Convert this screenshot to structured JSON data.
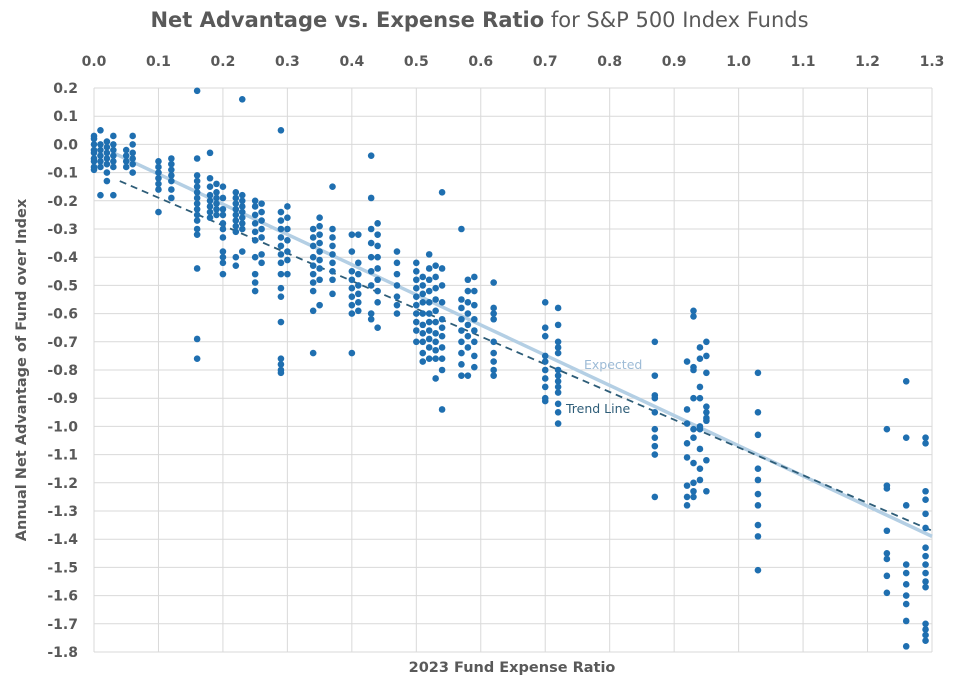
{
  "chart_data": {
    "type": "scatter",
    "title_bold": "Net Advantage vs. Expense Ratio",
    "title_rest": " for S&P 500 Index Funds",
    "xlabel": "2023 Fund Expense Ratio",
    "ylabel": "Annual Net Advantage of Fund over Index",
    "xlim": [
      0.0,
      1.3
    ],
    "ylim": [
      -1.8,
      0.2
    ],
    "x_ticks": [
      "0.0",
      "0.1",
      "0.2",
      "0.3",
      "0.4",
      "0.5",
      "0.6",
      "0.7",
      "0.8",
      "0.9",
      "1.0",
      "1.1",
      "1.2",
      "1.3"
    ],
    "y_ticks": [
      "0.2",
      "0.1",
      "0.0",
      "-0.1",
      "-0.2",
      "-0.3",
      "-0.4",
      "-0.5",
      "-0.6",
      "-0.7",
      "-0.8",
      "-0.9",
      "-1.0",
      "-1.1",
      "-1.2",
      "-1.3",
      "-1.4",
      "-1.5",
      "-1.6",
      "-1.7",
      "-1.8"
    ],
    "x_axis_position": "top",
    "grid": true,
    "point_color": "#1f6fb0",
    "points_by_x": [
      {
        "x": 0.0,
        "y": [
          0.03,
          0.02,
          0.0,
          -0.02,
          -0.03,
          -0.05,
          -0.06,
          -0.08,
          -0.09
        ]
      },
      {
        "x": 0.01,
        "y": [
          0.05,
          0.0,
          -0.02,
          -0.04,
          -0.06,
          -0.08,
          -0.18
        ]
      },
      {
        "x": 0.02,
        "y": [
          0.01,
          -0.01,
          -0.03,
          -0.05,
          -0.07,
          -0.1,
          -0.13
        ]
      },
      {
        "x": 0.03,
        "y": [
          0.03,
          0.0,
          -0.02,
          -0.04,
          -0.06,
          -0.08,
          -0.18
        ]
      },
      {
        "x": 0.05,
        "y": [
          -0.02,
          -0.04,
          -0.06,
          -0.08
        ]
      },
      {
        "x": 0.06,
        "y": [
          0.03,
          0.0,
          -0.03,
          -0.05,
          -0.07,
          -0.1
        ]
      },
      {
        "x": 0.1,
        "y": [
          -0.06,
          -0.08,
          -0.1,
          -0.12,
          -0.14,
          -0.16,
          -0.24
        ]
      },
      {
        "x": 0.12,
        "y": [
          -0.05,
          -0.07,
          -0.09,
          -0.11,
          -0.13,
          -0.16,
          -0.19
        ]
      },
      {
        "x": 0.16,
        "y": [
          0.19,
          -0.05,
          -0.11,
          -0.13,
          -0.15,
          -0.17,
          -0.19,
          -0.21,
          -0.23,
          -0.25,
          -0.27,
          -0.3,
          -0.32,
          -0.44,
          -0.69,
          -0.76
        ]
      },
      {
        "x": 0.18,
        "y": [
          -0.03,
          -0.12,
          -0.15,
          -0.18,
          -0.2,
          -0.22,
          -0.24,
          -0.26
        ]
      },
      {
        "x": 0.19,
        "y": [
          -0.14,
          -0.17,
          -0.19,
          -0.21,
          -0.23,
          -0.25
        ]
      },
      {
        "x": 0.2,
        "y": [
          -0.15,
          -0.19,
          -0.23,
          -0.25,
          -0.28,
          -0.3,
          -0.33,
          -0.38,
          -0.4,
          -0.42,
          -0.46
        ]
      },
      {
        "x": 0.22,
        "y": [
          -0.17,
          -0.19,
          -0.21,
          -0.23,
          -0.25,
          -0.27,
          -0.29,
          -0.31,
          -0.4,
          -0.43
        ]
      },
      {
        "x": 0.23,
        "y": [
          0.16,
          -0.18,
          -0.2,
          -0.22,
          -0.24,
          -0.26,
          -0.28,
          -0.3,
          -0.38
        ]
      },
      {
        "x": 0.25,
        "y": [
          -0.2,
          -0.22,
          -0.25,
          -0.28,
          -0.31,
          -0.34,
          -0.4,
          -0.46,
          -0.49,
          -0.52
        ]
      },
      {
        "x": 0.26,
        "y": [
          -0.21,
          -0.24,
          -0.27,
          -0.3,
          -0.33,
          -0.39,
          -0.42
        ]
      },
      {
        "x": 0.29,
        "y": [
          0.05,
          -0.24,
          -0.27,
          -0.3,
          -0.33,
          -0.36,
          -0.39,
          -0.42,
          -0.46,
          -0.51,
          -0.54,
          -0.63,
          -0.76,
          -0.78,
          -0.8,
          -0.81
        ]
      },
      {
        "x": 0.3,
        "y": [
          -0.22,
          -0.26,
          -0.3,
          -0.34,
          -0.38,
          -0.41,
          -0.46
        ]
      },
      {
        "x": 0.34,
        "y": [
          -0.3,
          -0.33,
          -0.36,
          -0.4,
          -0.43,
          -0.46,
          -0.49,
          -0.52,
          -0.59,
          -0.74
        ]
      },
      {
        "x": 0.35,
        "y": [
          -0.26,
          -0.29,
          -0.32,
          -0.35,
          -0.38,
          -0.41,
          -0.44,
          -0.48,
          -0.57
        ]
      },
      {
        "x": 0.37,
        "y": [
          -0.15,
          -0.3,
          -0.33,
          -0.36,
          -0.39,
          -0.42,
          -0.45,
          -0.48,
          -0.53
        ]
      },
      {
        "x": 0.4,
        "y": [
          -0.32,
          -0.38,
          -0.45,
          -0.48,
          -0.51,
          -0.54,
          -0.57,
          -0.6,
          -0.74
        ]
      },
      {
        "x": 0.41,
        "y": [
          -0.32,
          -0.42,
          -0.46,
          -0.5,
          -0.53,
          -0.56,
          -0.59
        ]
      },
      {
        "x": 0.43,
        "y": [
          -0.04,
          -0.19,
          -0.3,
          -0.35,
          -0.4,
          -0.45,
          -0.5,
          -0.6,
          -0.62
        ]
      },
      {
        "x": 0.44,
        "y": [
          -0.28,
          -0.32,
          -0.36,
          -0.4,
          -0.44,
          -0.48,
          -0.52,
          -0.56,
          -0.65
        ]
      },
      {
        "x": 0.47,
        "y": [
          -0.38,
          -0.42,
          -0.46,
          -0.5,
          -0.54,
          -0.57,
          -0.6
        ]
      },
      {
        "x": 0.5,
        "y": [
          -0.42,
          -0.45,
          -0.48,
          -0.51,
          -0.54,
          -0.57,
          -0.6,
          -0.63,
          -0.66,
          -0.7
        ]
      },
      {
        "x": 0.51,
        "y": [
          -0.47,
          -0.5,
          -0.53,
          -0.56,
          -0.6,
          -0.64,
          -0.67,
          -0.7,
          -0.74,
          -0.77
        ]
      },
      {
        "x": 0.52,
        "y": [
          -0.39,
          -0.44,
          -0.48,
          -0.52,
          -0.56,
          -0.6,
          -0.63,
          -0.66,
          -0.69,
          -0.72,
          -0.76
        ]
      },
      {
        "x": 0.53,
        "y": [
          -0.43,
          -0.47,
          -0.51,
          -0.55,
          -0.59,
          -0.63,
          -0.67,
          -0.7,
          -0.73,
          -0.76,
          -0.83
        ]
      },
      {
        "x": 0.54,
        "y": [
          -0.17,
          -0.44,
          -0.5,
          -0.56,
          -0.62,
          -0.65,
          -0.68,
          -0.72,
          -0.76,
          -0.8,
          -0.94
        ]
      },
      {
        "x": 0.57,
        "y": [
          -0.3,
          -0.55,
          -0.58,
          -0.62,
          -0.66,
          -0.7,
          -0.74,
          -0.78,
          -0.82
        ]
      },
      {
        "x": 0.58,
        "y": [
          -0.48,
          -0.52,
          -0.56,
          -0.6,
          -0.64,
          -0.68,
          -0.72,
          -0.82
        ]
      },
      {
        "x": 0.59,
        "y": [
          -0.47,
          -0.52,
          -0.57,
          -0.62,
          -0.66,
          -0.7,
          -0.75,
          -0.79
        ]
      },
      {
        "x": 0.62,
        "y": [
          -0.49,
          -0.58,
          -0.6,
          -0.62,
          -0.7,
          -0.74,
          -0.77,
          -0.8,
          -0.82
        ]
      },
      {
        "x": 0.7,
        "y": [
          -0.56,
          -0.65,
          -0.68,
          -0.75,
          -0.77,
          -0.8,
          -0.83,
          -0.86,
          -0.9,
          -0.91
        ]
      },
      {
        "x": 0.72,
        "y": [
          -0.58,
          -0.64,
          -0.7,
          -0.72,
          -0.74,
          -0.8,
          -0.82,
          -0.84,
          -0.86,
          -0.88,
          -0.92,
          -0.95,
          -0.99
        ]
      },
      {
        "x": 0.87,
        "y": [
          -0.7,
          -0.82,
          -0.89,
          -0.9,
          -0.95,
          -1.01,
          -1.04,
          -1.07,
          -1.1,
          -1.25
        ]
      },
      {
        "x": 0.92,
        "y": [
          -0.77,
          -0.94,
          -0.99,
          -1.06,
          -1.11,
          -1.21,
          -1.25,
          -1.28
        ]
      },
      {
        "x": 0.93,
        "y": [
          -0.59,
          -0.61,
          -0.79,
          -0.8,
          -0.9,
          -1.01,
          -1.04,
          -1.13,
          -1.2,
          -1.23,
          -1.25
        ]
      },
      {
        "x": 0.94,
        "y": [
          -0.72,
          -0.76,
          -0.86,
          -0.9,
          -1.0,
          -1.01,
          -1.08,
          -1.15,
          -1.19
        ]
      },
      {
        "x": 0.95,
        "y": [
          -0.7,
          -0.75,
          -0.81,
          -0.93,
          -0.95,
          -0.97,
          -0.98,
          -1.12,
          -1.23
        ]
      },
      {
        "x": 1.03,
        "y": [
          -0.81,
          -0.95,
          -1.03,
          -1.15,
          -1.19,
          -1.24,
          -1.28,
          -1.35,
          -1.39,
          -1.51
        ]
      },
      {
        "x": 1.23,
        "y": [
          -1.01,
          -1.21,
          -1.22,
          -1.37,
          -1.45,
          -1.47,
          -1.53,
          -1.59
        ]
      },
      {
        "x": 1.26,
        "y": [
          -0.84,
          -1.04,
          -1.28,
          -1.49,
          -1.52,
          -1.56,
          -1.6,
          -1.63,
          -1.69,
          -1.78
        ]
      },
      {
        "x": 1.29,
        "y": [
          -1.04,
          -1.06,
          -1.23,
          -1.26,
          -1.31,
          -1.36,
          -1.43,
          -1.46,
          -1.49,
          -1.52,
          -1.55,
          -1.57,
          -1.7,
          -1.72,
          -1.74,
          -1.76
        ]
      }
    ],
    "lines": [
      {
        "name": "Expected",
        "color": "#b4cfe4",
        "label_color": "#9dbbd6",
        "style": "solid",
        "x": [
          0.03,
          1.3
        ],
        "y": [
          -0.03,
          -1.39
        ]
      },
      {
        "name": "Trend Line",
        "color": "#2e5d78",
        "label_color": "#2e5d78",
        "style": "dashed",
        "x": [
          0.04,
          1.3
        ],
        "y": [
          -0.13,
          -1.37
        ]
      }
    ]
  }
}
